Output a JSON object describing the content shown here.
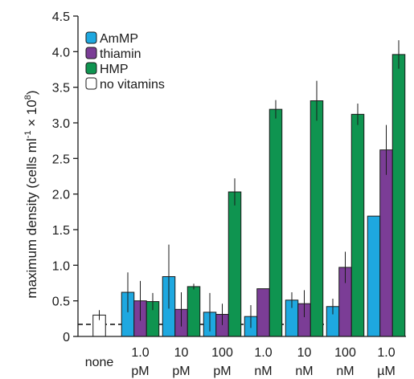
{
  "chart_data": {
    "type": "bar",
    "ylabel": "maximum density (cells ml",
    "ylabel_sup1": "-1",
    "ylabel_mid": " × 10",
    "ylabel_sup2": "8",
    "ylabel_end": ")",
    "ylim": [
      0,
      4.5
    ],
    "yticks": [
      "0",
      "0.5",
      "1.0",
      "1.5",
      "2.0",
      "2.5",
      "3.0",
      "3.5",
      "4.0",
      "4.5"
    ],
    "categories": [
      {
        "line1": "none",
        "line2": ""
      },
      {
        "line1": "1.0",
        "line2": "pM"
      },
      {
        "line1": "10",
        "line2": "pM"
      },
      {
        "line1": "100",
        "line2": "pM"
      },
      {
        "line1": "1.0",
        "line2": "nM"
      },
      {
        "line1": "10",
        "line2": "nM"
      },
      {
        "line1": "100",
        "line2": "nM"
      },
      {
        "line1": "1.0",
        "line2": "µM"
      }
    ],
    "series": [
      {
        "name": "AmMP",
        "color": "#1ea8e0",
        "values": [
          null,
          0.62,
          0.84,
          0.34,
          0.28,
          0.51,
          0.42,
          1.69
        ],
        "errors": [
          null,
          0.28,
          0.45,
          0.27,
          0.16,
          0.11,
          0.11,
          0.0
        ]
      },
      {
        "name": "thiamin",
        "color": "#7b3d96",
        "values": [
          null,
          0.5,
          0.38,
          0.31,
          0.67,
          0.46,
          0.97,
          2.62
        ],
        "errors": [
          null,
          0.28,
          0.24,
          0.15,
          0.0,
          0.19,
          0.22,
          0.35
        ]
      },
      {
        "name": "HMP",
        "color": "#0f9450",
        "values": [
          null,
          0.49,
          0.7,
          2.03,
          3.19,
          3.31,
          3.12,
          3.96
        ],
        "errors": [
          null,
          0.12,
          0.04,
          0.19,
          0.13,
          0.28,
          0.15,
          0.2
        ]
      },
      {
        "name": "no vitamins",
        "color": "#ffffff",
        "values": [
          0.3,
          null,
          null,
          null,
          null,
          null,
          null,
          null
        ],
        "errors": [
          0.07,
          null,
          null,
          null,
          null,
          null,
          null,
          null
        ]
      }
    ],
    "reference_line": {
      "y": 0.17,
      "style": "dashed"
    },
    "legend": "top-left",
    "grid": false
  }
}
